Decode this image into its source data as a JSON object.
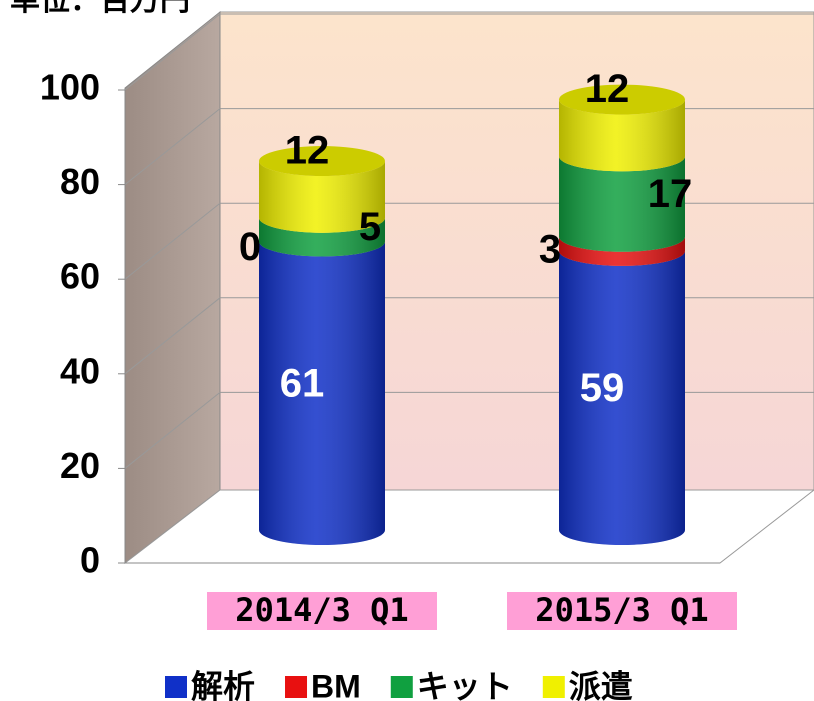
{
  "chart_data": {
    "type": "bar3d_stacked_cylinder",
    "subtitle": "単位：百万円",
    "categories": [
      "2014/3 Q1",
      "2015/3 Q1"
    ],
    "series": [
      {
        "name": "解析",
        "color": "#1030c8",
        "values": [
          61,
          59
        ]
      },
      {
        "name": "BM",
        "color": "#e81010",
        "values": [
          0,
          3
        ]
      },
      {
        "name": "キット",
        "color": "#10a040",
        "values": [
          5,
          17
        ]
      },
      {
        "name": "派遣",
        "color": "#f0f000",
        "values": [
          12,
          12
        ]
      }
    ],
    "ylim": [
      0,
      100
    ],
    "yticks": [
      0,
      20,
      40,
      60,
      80,
      100
    ],
    "grid": true,
    "legend": "bottom"
  }
}
